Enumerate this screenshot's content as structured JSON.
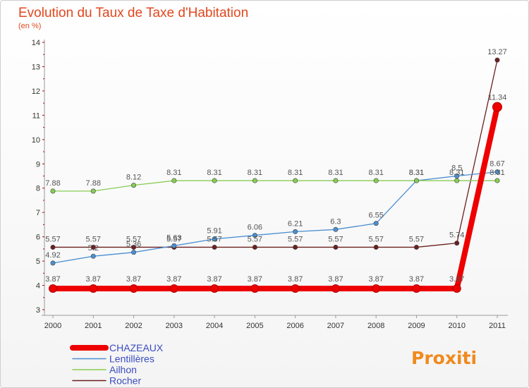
{
  "title": "Evolution du Taux de Taxe d'Habitation",
  "subtitle": "(en %)",
  "logo": "Proxiti",
  "chart_data": {
    "type": "line",
    "title": "Evolution du Taux de Taxe d'Habitation",
    "subtitle": "(en %)",
    "xlabel": "",
    "ylabel": "",
    "x": [
      "2000",
      "2001",
      "2002",
      "2003",
      "2004",
      "2005",
      "2006",
      "2007",
      "2008",
      "2009",
      "2010",
      "2011"
    ],
    "ylim": [
      3,
      14
    ],
    "yticks": [
      "3",
      "4",
      "5",
      "6",
      "7",
      "8",
      "9",
      "10",
      "11",
      "12",
      "13",
      "14"
    ],
    "grid": false,
    "legend_position": "bottom-left",
    "series": [
      {
        "name": "Rocher",
        "color": "#6b1f1f",
        "values": [
          5.57,
          5.57,
          5.57,
          5.57,
          5.57,
          5.57,
          5.57,
          5.57,
          5.57,
          5.57,
          5.74,
          13.27
        ],
        "labels": [
          "5.57",
          "5.57",
          "5.57",
          "5.57",
          "5.57",
          "5.57",
          "5.57",
          "5.57",
          "5.57",
          "5.57",
          "5.74",
          "13.27"
        ]
      },
      {
        "name": "Lentillères",
        "color": "#4a8fd0",
        "values": [
          4.92,
          5.2,
          5.36,
          5.63,
          5.91,
          6.06,
          6.21,
          6.3,
          6.55,
          8.31,
          8.5,
          8.67
        ],
        "labels": [
          "4.92",
          "5.2",
          "5.36",
          "5.63",
          "5.91",
          "6.06",
          "6.21",
          "6.3",
          "6.55",
          "8.31",
          "8.5",
          "8.67"
        ]
      },
      {
        "name": "Ailhon",
        "color": "#88cc55",
        "values": [
          7.88,
          7.88,
          8.12,
          8.31,
          8.31,
          8.31,
          8.31,
          8.31,
          8.31,
          8.31,
          8.31,
          8.31
        ],
        "labels": [
          "7.88",
          "7.88",
          "8.12",
          "8.31",
          "8.31",
          "8.31",
          "8.31",
          "8.31",
          "8.31",
          "8.31",
          "8.31",
          "8.31"
        ]
      },
      {
        "name": "CHAZEAUX",
        "color": "#ee0000",
        "values": [
          3.87,
          3.87,
          3.87,
          3.87,
          3.87,
          3.87,
          3.87,
          3.87,
          3.87,
          3.87,
          3.87,
          11.34
        ],
        "labels": [
          "3.87",
          "3.87",
          "3.87",
          "3.87",
          "3.87",
          "3.87",
          "3.87",
          "3.87",
          "3.87",
          "3.87",
          "3.87",
          "11.34"
        ]
      }
    ],
    "legend": [
      {
        "name": "CHAZEAUX",
        "color": "#ee0000"
      },
      {
        "name": "Lentillères",
        "color": "#4a8fd0"
      },
      {
        "name": "Ailhon",
        "color": "#88cc55"
      },
      {
        "name": "Rocher",
        "color": "#6b1f1f"
      }
    ]
  }
}
